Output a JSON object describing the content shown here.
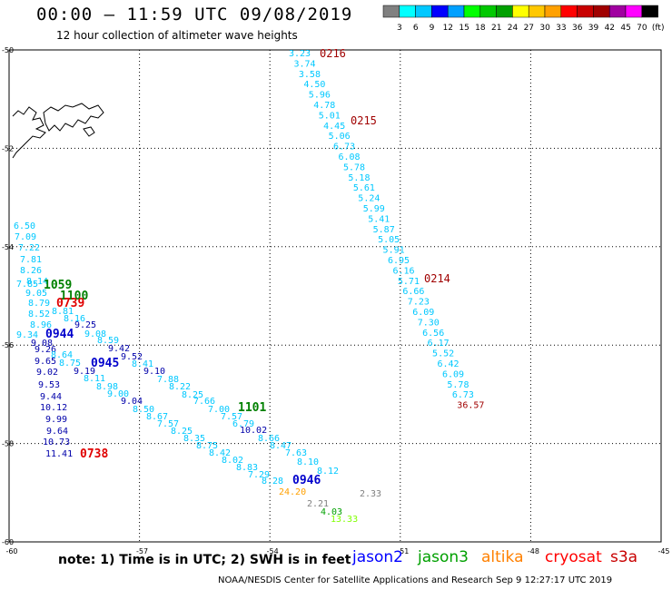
{
  "header": {
    "title": "00:00 – 11:59 UTC 09/08/2019",
    "subtitle": "12 hour collection of altimeter wave heights"
  },
  "scale": {
    "labels": [
      "3",
      "6",
      "9",
      "12",
      "15",
      "18",
      "21",
      "24",
      "27",
      "30",
      "33",
      "36",
      "39",
      "42",
      "45",
      "70",
      "(ft)"
    ],
    "colors": [
      "#808080",
      "#00ffff",
      "#00c8ff",
      "#0000ff",
      "#00a0ff",
      "#00ff00",
      "#00c800",
      "#00a000",
      "#ffff00",
      "#ffc800",
      "#ffa000",
      "#ff0000",
      "#c80000",
      "#a00000",
      "#a000a0",
      "#ff00ff",
      "#000000"
    ]
  },
  "map": {
    "lon_labels": [
      "-60",
      "-57",
      "-54",
      "-51",
      "-48",
      "-45"
    ],
    "lat_labels": [
      "-50",
      "-52",
      "-54",
      "-56",
      "-58",
      "-60"
    ],
    "tracks": [
      {
        "name": "altika-0216",
        "id": "0216",
        "color": "#00c8ff",
        "id_color": "#a00000",
        "values": [
          "3.23",
          "3.74",
          "3.58",
          "4.50",
          "5.96",
          "4.78",
          "5.01",
          "4.45",
          "5.06",
          "6.73",
          "6.08",
          "5.78",
          "5.18",
          "5.61",
          "5.24",
          "5.99",
          "5.41",
          "5.87",
          "5.05",
          "5.91",
          "6.95",
          "6.16",
          "5.71",
          "6.66",
          "7.23",
          "6.09",
          "7.30",
          "6.56",
          "6.17",
          "5.52",
          "6.42",
          "6.09",
          "5.78",
          "6.73",
          "36.57"
        ]
      },
      {
        "name": "altika-0215",
        "id": "0215",
        "color": "#00c8ff",
        "id_color": "#a00000",
        "values": []
      },
      {
        "name": "altika-0214",
        "id": "0214",
        "color": "#00c8ff",
        "id_color": "#a00000",
        "values": []
      },
      {
        "name": "jason2-0944",
        "id": "0944",
        "color": "#00c8ff",
        "id_color": "#0000cc",
        "values": [
          "6.50",
          "7.09",
          "7.22",
          "7.81",
          "8.26",
          "8.14",
          "7.85",
          "9.05",
          "8.79",
          "8.52",
          "8.96",
          "9.34",
          "9.08",
          "9.26",
          "9.65",
          "9.02",
          "9.53",
          "9.44",
          "10.12",
          "9.99",
          "9.64",
          "10.73",
          "11.41"
        ]
      },
      {
        "name": "jason2-0945",
        "id": "0945",
        "color": "#00c8ff",
        "id_color": "#0000cc",
        "values": [
          "8.81",
          "8.16",
          "9.25",
          "9.08",
          "8.59",
          "9.42",
          "9.52",
          "8.41",
          "9.10",
          "7.88",
          "8.22",
          "8.25",
          "7.66",
          "7.00",
          "7.57",
          "6.79",
          "10.02",
          "8.66",
          "8.47",
          "7.63",
          "8.10",
          "8.12"
        ]
      },
      {
        "name": "jason2-0946",
        "id": "0946",
        "color": "#00c8ff",
        "id_color": "#0000cc",
        "values": [
          "8.64",
          "8.75",
          "9.19",
          "8.11",
          "8.98",
          "9.00",
          "9.04",
          "8.50",
          "8.67",
          "7.57",
          "8.25",
          "8.35",
          "8.75",
          "8.42",
          "8.02",
          "8.83",
          "7.29",
          "8.28"
        ]
      },
      {
        "name": "jason3-1059",
        "id": "1059",
        "color": "#00a000",
        "id_color": "#008000",
        "values": []
      },
      {
        "name": "jason3-1100",
        "id": "1100",
        "color": "#00a000",
        "id_color": "#008000",
        "values": []
      },
      {
        "name": "jason3-1101",
        "id": "1101",
        "color": "#00a000",
        "id_color": "#008000",
        "values": []
      },
      {
        "name": "cryosat-0739",
        "id": "0739",
        "color": "#ff0000",
        "id_color": "#e00000",
        "values": []
      },
      {
        "name": "cryosat-0738",
        "id": "0738",
        "color": "#ff0000",
        "id_color": "#e00000",
        "values": []
      },
      {
        "name": "misc",
        "id": "",
        "color": "#808080",
        "id_color": "#808080",
        "values": [
          "24.20",
          "2.21",
          "2.33",
          "4.03",
          "13.33"
        ]
      }
    ]
  },
  "footer": {
    "note": "note:  1) Time is in UTC; 2) SWH is in feet",
    "sats": [
      {
        "label": "jason2",
        "color": "#0000ff"
      },
      {
        "label": "jason3",
        "color": "#00a000"
      },
      {
        "label": "altika",
        "color": "#ff8000"
      },
      {
        "label": "cryosat",
        "color": "#ff0000"
      },
      {
        "label": "s3a",
        "color": "#c80000"
      }
    ],
    "credit": "NOAA/NESDIS Center for Satellite Applications and Research    Sep  9 12:27:17 UTC 2019"
  }
}
